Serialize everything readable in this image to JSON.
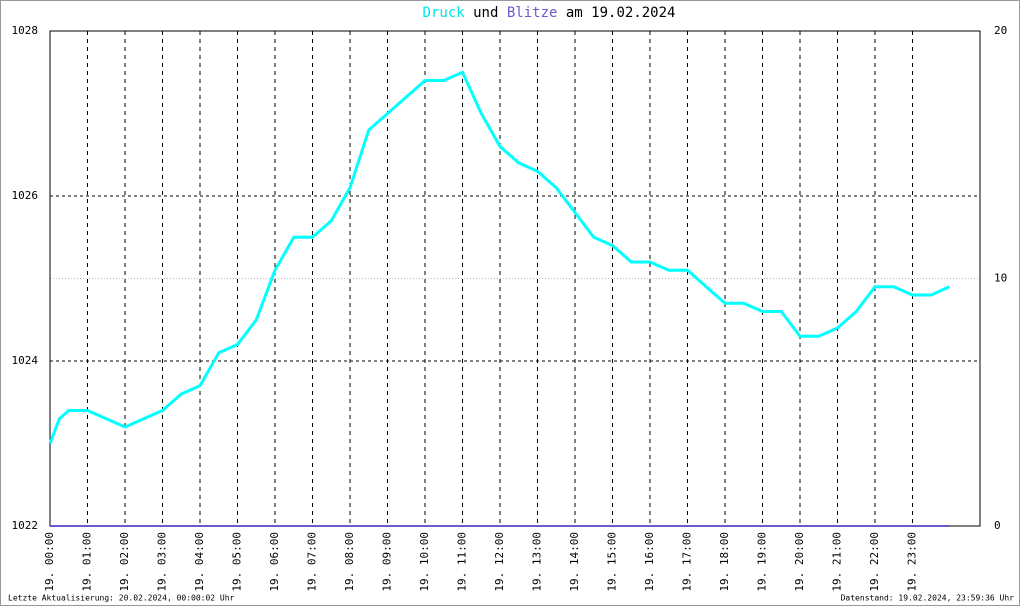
{
  "chart_data": {
    "type": "line",
    "title_parts": [
      "und",
      "am 19.02.2024"
    ],
    "x": [
      0,
      0.25,
      0.5,
      1,
      1.5,
      2,
      2.5,
      3,
      3.5,
      4,
      4.5,
      5,
      5.5,
      6,
      6.5,
      7,
      7.5,
      8,
      8.5,
      9,
      9.5,
      10,
      10.5,
      11,
      11.5,
      12,
      12.5,
      13,
      13.5,
      14,
      14.5,
      15,
      15.5,
      16,
      16.5,
      17,
      17.5,
      18,
      18.5,
      19,
      19.5,
      20,
      20.5,
      21,
      21.5,
      22,
      22.5,
      23,
      23.5,
      23.98
    ],
    "series": [
      {
        "name": "Druck",
        "color": "#00ffff",
        "values": [
          1023.0,
          1023.3,
          1023.4,
          1023.4,
          1023.3,
          1023.2,
          1023.3,
          1023.4,
          1023.6,
          1023.7,
          1024.1,
          1024.2,
          1024.5,
          1025.1,
          1025.5,
          1025.5,
          1025.7,
          1026.1,
          1026.8,
          1027.0,
          1027.2,
          1027.4,
          1027.4,
          1027.5,
          1027.0,
          1026.6,
          1026.4,
          1026.3,
          1026.1,
          1025.8,
          1025.5,
          1025.4,
          1025.2,
          1025.2,
          1025.1,
          1025.1,
          1024.9,
          1024.7,
          1024.7,
          1024.6,
          1024.6,
          1024.3,
          1024.3,
          1024.4,
          1024.6,
          1024.9,
          1024.9,
          1024.8,
          1024.8,
          1024.9
        ]
      },
      {
        "name": "Blitze",
        "color": "#6a5acd",
        "axis": "y2",
        "values": [
          0,
          0,
          0,
          0,
          0,
          0,
          0,
          0,
          0,
          0,
          0,
          0,
          0,
          0,
          0,
          0,
          0,
          0,
          0,
          0,
          0,
          0,
          0,
          0,
          0,
          0,
          0,
          0,
          0,
          0,
          0,
          0,
          0,
          0,
          0,
          0,
          0,
          0,
          0,
          0,
          0,
          0,
          0,
          0,
          0,
          0,
          0,
          0,
          0,
          0
        ]
      }
    ],
    "xlim": [
      0,
      24.8
    ],
    "xticks": [
      {
        "value": 0,
        "label": "19. 00:00"
      },
      {
        "value": 1,
        "label": "19. 01:00"
      },
      {
        "value": 2,
        "label": "19. 02:00"
      },
      {
        "value": 3,
        "label": "19. 03:00"
      },
      {
        "value": 4,
        "label": "19. 04:00"
      },
      {
        "value": 5,
        "label": "19. 05:00"
      },
      {
        "value": 6,
        "label": "19. 06:00"
      },
      {
        "value": 7,
        "label": "19. 07:00"
      },
      {
        "value": 8,
        "label": "19. 08:00"
      },
      {
        "value": 9,
        "label": "19. 09:00"
      },
      {
        "value": 10,
        "label": "19. 10:00"
      },
      {
        "value": 11,
        "label": "19. 11:00"
      },
      {
        "value": 12,
        "label": "19. 12:00"
      },
      {
        "value": 13,
        "label": "19. 13:00"
      },
      {
        "value": 14,
        "label": "19. 14:00"
      },
      {
        "value": 15,
        "label": "19. 15:00"
      },
      {
        "value": 16,
        "label": "19. 16:00"
      },
      {
        "value": 17,
        "label": "19. 17:00"
      },
      {
        "value": 18,
        "label": "19. 18:00"
      },
      {
        "value": 19,
        "label": "19. 19:00"
      },
      {
        "value": 20,
        "label": "19. 20:00"
      },
      {
        "value": 21,
        "label": "19. 21:00"
      },
      {
        "value": 22,
        "label": "19. 22:00"
      },
      {
        "value": 23,
        "label": "19. 23:00"
      }
    ],
    "ylim": [
      1022,
      1028
    ],
    "yticks": [
      1022,
      1024,
      1026,
      1028
    ],
    "y2lim": [
      0,
      20
    ],
    "y2ticks": [
      0,
      10,
      20
    ],
    "grid": true,
    "footer_left": "Letzte Aktualisierung: 20.02.2024, 00:00:02 Uhr",
    "footer_right": "Datenstand: 19.02.2024, 23:59:36 Uhr"
  }
}
